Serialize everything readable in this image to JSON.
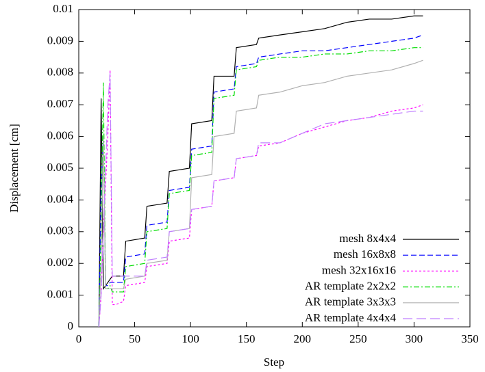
{
  "chart_data": {
    "type": "line",
    "x_label": "Step",
    "y_label": "Displacement [cm]",
    "xlim": [
      0,
      350
    ],
    "xticks": [
      0,
      50,
      100,
      150,
      200,
      250,
      300,
      350
    ],
    "ylim": [
      0,
      0.01
    ],
    "yticks": [
      0,
      0.001,
      0.002,
      0.003,
      0.004,
      0.005,
      0.006,
      0.007,
      0.008,
      0.009,
      0.01
    ],
    "legend": "bottom-right",
    "x": [
      18,
      20,
      22,
      24,
      26,
      28,
      30,
      33,
      40,
      42,
      59,
      61,
      79,
      81,
      99,
      101,
      119,
      121,
      139,
      141,
      159,
      161,
      180,
      200,
      220,
      240,
      260,
      280,
      300,
      308
    ],
    "series": [
      {
        "name": "mesh 8x4x4",
        "color": "#000000",
        "dash": "none",
        "values": [
          0,
          0.0072,
          0.0012,
          0.0013,
          0.0014,
          0.0015,
          0.0016,
          0.0016,
          0.0016,
          0.0027,
          0.0028,
          0.0038,
          0.0039,
          0.0049,
          0.005,
          0.0064,
          0.0065,
          0.0079,
          0.0079,
          0.0088,
          0.0089,
          0.0091,
          0.0092,
          0.0093,
          0.0094,
          0.0096,
          0.0097,
          0.0097,
          0.0098,
          0.0098
        ]
      },
      {
        "name": "mesh 16x8x8",
        "color": "#0000ff",
        "dash": "8,4",
        "values": [
          0,
          0.0045,
          0.006,
          0.0013,
          0.0013,
          0.0014,
          0.0014,
          0.0014,
          0.0014,
          0.0022,
          0.0023,
          0.0032,
          0.0033,
          0.0043,
          0.0044,
          0.0056,
          0.0057,
          0.0074,
          0.0075,
          0.0082,
          0.0083,
          0.0085,
          0.0086,
          0.0087,
          0.0087,
          0.0088,
          0.0089,
          0.009,
          0.0091,
          0.0092
        ]
      },
      {
        "name": "mesh 32x16x16",
        "color": "#ff00ff",
        "dash": "3,3",
        "values": [
          0,
          0.001,
          0.003,
          0.0045,
          0.006,
          0.0081,
          0.0007,
          0.0007,
          0.0008,
          0.0013,
          0.0014,
          0.0019,
          0.002,
          0.0027,
          0.0028,
          0.0037,
          0.0038,
          0.0046,
          0.0047,
          0.0053,
          0.0054,
          0.0057,
          0.0058,
          0.0061,
          0.0063,
          0.0065,
          0.0066,
          0.0068,
          0.0069,
          0.007
        ]
      },
      {
        "name": "AR template 2x2x2",
        "color": "#00dd00",
        "dash": "8,3,2,3",
        "values": [
          0,
          0.003,
          0.0077,
          0.0012,
          0.0012,
          0.0013,
          0.0011,
          0.0011,
          0.0011,
          0.0019,
          0.002,
          0.003,
          0.0031,
          0.0042,
          0.0043,
          0.0054,
          0.0055,
          0.0072,
          0.0073,
          0.0081,
          0.0082,
          0.0084,
          0.0085,
          0.0085,
          0.0086,
          0.0086,
          0.0087,
          0.0087,
          0.0088,
          0.0088
        ]
      },
      {
        "name": "AR template 3x3x3",
        "color": "#b0b0b0",
        "dash": "none",
        "values": [
          0,
          0.002,
          0.006,
          0.0012,
          0.0012,
          0.0012,
          0.0012,
          0.0012,
          0.0012,
          0.0015,
          0.0016,
          0.002,
          0.0021,
          0.003,
          0.0031,
          0.0047,
          0.0048,
          0.006,
          0.0061,
          0.0068,
          0.0069,
          0.0073,
          0.0074,
          0.0076,
          0.0077,
          0.0079,
          0.008,
          0.0081,
          0.0083,
          0.0084
        ]
      },
      {
        "name": "AR template 4x4x4",
        "color": "#c080ff",
        "dash": "14,6",
        "values": [
          0,
          0.001,
          0.003,
          0.005,
          0.007,
          0.008,
          0.0016,
          0.0016,
          0.0016,
          0.0016,
          0.0016,
          0.0021,
          0.0022,
          0.003,
          0.0031,
          0.0037,
          0.0038,
          0.0046,
          0.0047,
          0.0053,
          0.0054,
          0.0058,
          0.0058,
          0.0061,
          0.0064,
          0.0065,
          0.0066,
          0.0067,
          0.0068,
          0.0068
        ]
      }
    ]
  }
}
